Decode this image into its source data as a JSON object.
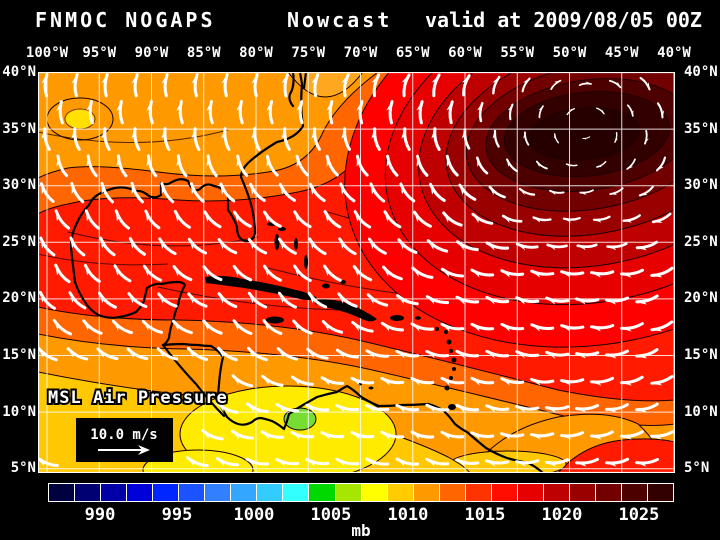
{
  "title": {
    "model": "FNMOC NOGAPS",
    "product": "Nowcast",
    "valid": "valid at 2009/08/05 00Z"
  },
  "map": {
    "overlay_label": "MSL Air Pressure",
    "wind_scale_label": "10.0 m/s",
    "lon_labels": [
      "100°W",
      "95°W",
      "90°W",
      "85°W",
      "80°W",
      "75°W",
      "70°W",
      "65°W",
      "60°W",
      "55°W",
      "50°W",
      "45°W",
      "40°W"
    ],
    "lat_labels": [
      "40°N",
      "35°N",
      "30°N",
      "25°N",
      "20°N",
      "15°N",
      "10°N",
      "5°N"
    ]
  },
  "colorbar": {
    "units": "mb",
    "tick_labels": [
      "990",
      "995",
      "1000",
      "1005",
      "1010",
      "1015",
      "1020",
      "1025"
    ],
    "tick_positions_pct": [
      8.3,
      20.6,
      32.9,
      45.2,
      57.5,
      69.8,
      82.1,
      94.4
    ],
    "cell_colors": [
      "#000040",
      "#000073",
      "#0000A6",
      "#0000D9",
      "#0026FF",
      "#1A53FF",
      "#3380FF",
      "#33A6FF",
      "#33CCFF",
      "#33FFFF",
      "#00D900",
      "#A6E600",
      "#FFFF00",
      "#FFCC00",
      "#FF9900",
      "#FF6600",
      "#FF3300",
      "#FF0D00",
      "#E60000",
      "#BF0000",
      "#990000",
      "#730000",
      "#4D0000",
      "#330000"
    ]
  }
}
